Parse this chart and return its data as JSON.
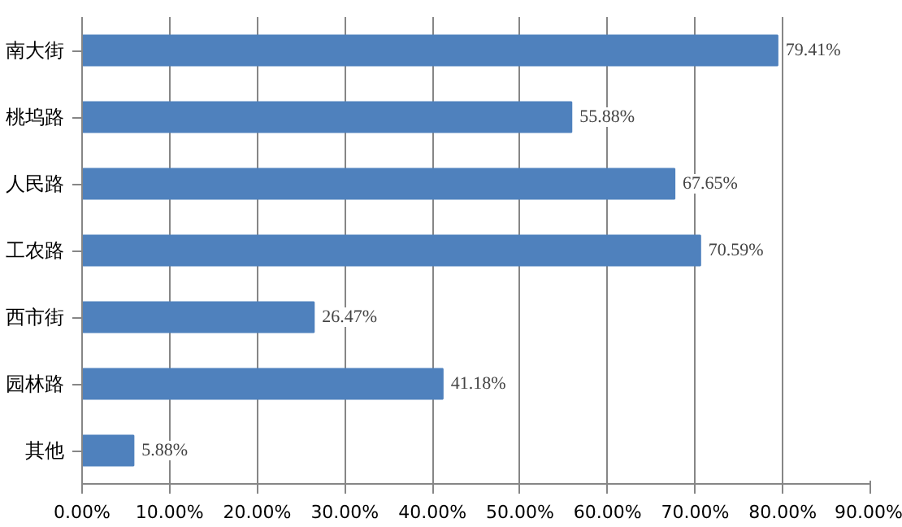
{
  "chart_data": {
    "type": "bar",
    "orientation": "horizontal",
    "categories": [
      "南大街",
      "桃坞路",
      "人民路",
      "工农路",
      "西市街",
      "园林路",
      "其他"
    ],
    "values": [
      79.41,
      55.88,
      67.65,
      70.59,
      26.47,
      41.18,
      5.88
    ],
    "color": "#4f81bd",
    "value_labels": [
      "79.41%",
      "55.88%",
      "67.65%",
      "70.59%",
      "26.47%",
      "41.18%",
      "5.88%"
    ],
    "xlim": [
      0,
      90
    ],
    "xticks": [
      {
        "value": 0,
        "label": "0.00%"
      },
      {
        "value": 10,
        "label": "10.00%"
      },
      {
        "value": 20,
        "label": "20.00%"
      },
      {
        "value": 30,
        "label": "30.00%"
      },
      {
        "value": 40,
        "label": "40.00%"
      },
      {
        "value": 50,
        "label": "50.00%"
      },
      {
        "value": 60,
        "label": "60.00%"
      },
      {
        "value": 70,
        "label": "70.00%"
      },
      {
        "value": 80,
        "label": "80.00%"
      },
      {
        "value": 90,
        "label": "90.00%"
      }
    ],
    "grid": "x"
  }
}
